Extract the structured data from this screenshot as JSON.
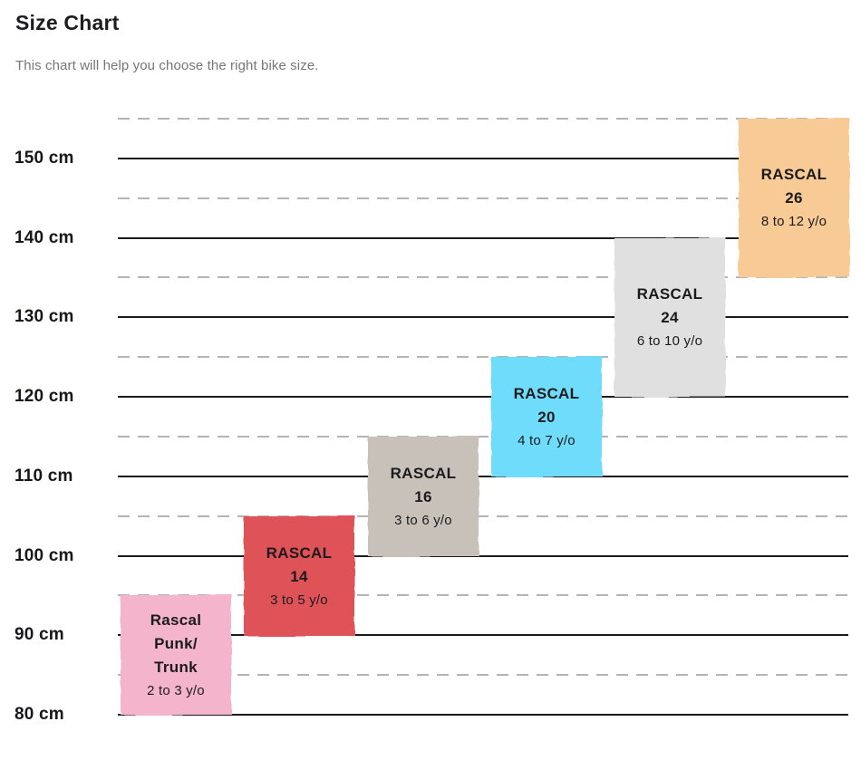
{
  "header": {
    "title": "Size Chart",
    "subtitle": "This chart will help you choose the right bike size."
  },
  "chart_data": {
    "type": "bar",
    "subtype": "vertical-floating-range",
    "title": "Size Chart",
    "subtitle": "This chart will help you choose the right bike size.",
    "xlabel": "",
    "ylabel": "",
    "unit": "cm",
    "ylim": [
      80,
      155
    ],
    "grid": {
      "major_step": 10,
      "minor_step": 5,
      "major_style": "solid",
      "minor_style": "dashed",
      "major_values": [
        150,
        140,
        130,
        120,
        110,
        100,
        90,
        80
      ],
      "minor_values": [
        155,
        145,
        135,
        125,
        115,
        105,
        95,
        85
      ]
    },
    "y_tick_labels": [
      "150 cm",
      "140 cm",
      "130 cm",
      "120 cm",
      "110 cm",
      "100 cm",
      "90 cm",
      "80 cm"
    ],
    "y_tick_values": [
      150,
      140,
      130,
      120,
      110,
      100,
      90,
      80
    ],
    "legend": "none",
    "series": [
      {
        "label": "Rascal Punk/Trunk",
        "name_lines": [
          "Rascal",
          "Punk/",
          "Trunk"
        ],
        "age": "2 to 3 y/o",
        "height_cm": [
          80,
          95
        ],
        "color": "#f3b4cc"
      },
      {
        "label": "RASCAL 14",
        "name_lines": [
          "RASCAL",
          "14"
        ],
        "age": "3 to 5 y/o",
        "height_cm": [
          90,
          105
        ],
        "color": "#df5258"
      },
      {
        "label": "RASCAL 16",
        "name_lines": [
          "RASCAL",
          "16"
        ],
        "age": "3 to 6 y/o",
        "height_cm": [
          100,
          115
        ],
        "color": "#c8c1ba"
      },
      {
        "label": "RASCAL 20",
        "name_lines": [
          "RASCAL",
          "20"
        ],
        "age": "4 to 7 y/o",
        "height_cm": [
          110,
          125
        ],
        "color": "#6fdcfb"
      },
      {
        "label": "RASCAL 24",
        "name_lines": [
          "RASCAL",
          "24"
        ],
        "age": "6 to 10 y/o",
        "height_cm": [
          120,
          140
        ],
        "color": "#e0e0e0"
      },
      {
        "label": "RASCAL 26",
        "name_lines": [
          "RASCAL",
          "26"
        ],
        "age": "8 to 12 y/o",
        "height_cm": [
          135,
          155
        ],
        "color": "#f8cb96"
      }
    ],
    "colors": {
      "grid_major": "#1b1b1b",
      "grid_minor": "#b4b4b4",
      "box_text": "#1b1b1d",
      "title_text": "#1d1d1f",
      "subtitle_text": "#75767b"
    }
  }
}
